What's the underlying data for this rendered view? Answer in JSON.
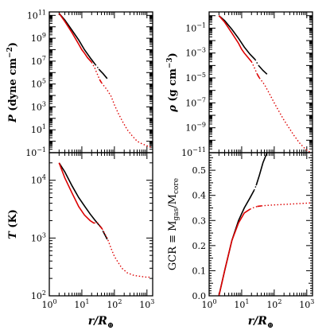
{
  "chart_data": [
    {
      "id": "pressure",
      "type": "line",
      "xscale": "log",
      "yscale": "log",
      "xlim": [
        1,
        1500
      ],
      "ylim": [
        0.1,
        200000000000
      ],
      "ylabel_symbol": "P",
      "ylabel_unit": " (dyne cm",
      "ylabel_unit_exp": "−2",
      "ylabel_close": ")",
      "yticks": [
        0.1,
        10,
        1000,
        100000,
        10000000,
        1000000000,
        100000000000
      ],
      "ytick_labels": [
        {
          "base": "10",
          "exp": "−1"
        },
        {
          "base": "10",
          "exp": "1"
        },
        {
          "base": "10",
          "exp": "3"
        },
        {
          "base": "10",
          "exp": "5"
        },
        {
          "base": "10",
          "exp": "7"
        },
        {
          "base": "10",
          "exp": "9"
        },
        {
          "base": "10",
          "exp": "11"
        }
      ],
      "series": [
        {
          "color": "#000000",
          "dash": "solid",
          "x": [
            2,
            3,
            5,
            8,
            12,
            18,
            26
          ],
          "y": [
            150000000000,
            40000000000,
            5000000000,
            700000000,
            100000000,
            20000000,
            5000000
          ]
        },
        {
          "color": "#000000",
          "dash": "dotted",
          "x": [
            26,
            30,
            33
          ],
          "y": [
            5000000,
            3000000,
            2000000
          ]
        },
        {
          "color": "#000000",
          "dash": "solid",
          "x": [
            33,
            45,
            60
          ],
          "y": [
            2000000,
            800000,
            300000
          ]
        },
        {
          "color": "#dd0000",
          "dash": "solid",
          "x": [
            2,
            3,
            5,
            8,
            10,
            12,
            15,
            20
          ],
          "y": [
            150000000000,
            30000000000,
            3000000000,
            300000000,
            100000000,
            50000000,
            20000000,
            8000000
          ]
        },
        {
          "color": "#dd0000",
          "dash": "dotted",
          "x": [
            20,
            25,
            30,
            35
          ],
          "y": [
            8000000,
            2500000,
            700000,
            250000
          ]
        },
        {
          "color": "#dd0000",
          "dash": "solid",
          "x": [
            35,
            40
          ],
          "y": [
            250000,
            130000
          ]
        },
        {
          "color": "#dd0000",
          "dash": "dotted",
          "x": [
            40,
            60,
            80,
            100,
            130,
            180,
            250,
            350,
            500,
            700,
            1000,
            1300
          ],
          "y": [
            130000,
            30000,
            8000,
            1500,
            300,
            50,
            10,
            3,
            1,
            0.6,
            0.4,
            0.3
          ]
        }
      ]
    },
    {
      "id": "density",
      "type": "line",
      "xscale": "log",
      "yscale": "log",
      "xlim": [
        1,
        1500
      ],
      "ylim": [
        1e-11,
        2
      ],
      "ylabel_symbol": "ρ",
      "ylabel_unit": " (g cm",
      "ylabel_unit_exp": "−3",
      "ylabel_close": ")",
      "yticks": [
        1e-11,
        1e-09,
        1e-07,
        1e-05,
        0.001,
        0.1
      ],
      "ytick_labels": [
        {
          "base": "10",
          "exp": "−11"
        },
        {
          "base": "10",
          "exp": "−9"
        },
        {
          "base": "10",
          "exp": "−7"
        },
        {
          "base": "10",
          "exp": "−5"
        },
        {
          "base": "10",
          "exp": "−3"
        },
        {
          "base": "10",
          "exp": "−1"
        }
      ],
      "series": [
        {
          "color": "#000000",
          "dash": "solid",
          "x": [
            2,
            3,
            5,
            8,
            12,
            18,
            26
          ],
          "y": [
            1,
            0.4,
            0.08,
            0.015,
            0.003,
            0.0008,
            0.0003
          ]
        },
        {
          "color": "#000000",
          "dash": "dotted",
          "x": [
            26,
            30,
            33
          ],
          "y": [
            0.0003,
            0.00015,
            0.0001
          ]
        },
        {
          "color": "#000000",
          "dash": "solid",
          "x": [
            33,
            45,
            60
          ],
          "y": [
            0.0001,
            4e-05,
            2e-05
          ]
        },
        {
          "color": "#dd0000",
          "dash": "solid",
          "x": [
            2,
            3,
            5,
            8,
            10,
            12,
            15,
            20
          ],
          "y": [
            1,
            0.3,
            0.04,
            0.006,
            0.002,
            0.001,
            0.0005,
            0.0002
          ]
        },
        {
          "color": "#dd0000",
          "dash": "dotted",
          "x": [
            20,
            25,
            30
          ],
          "y": [
            0.0002,
            6e-05,
            2e-05
          ]
        },
        {
          "color": "#dd0000",
          "dash": "solid",
          "x": [
            30,
            35
          ],
          "y": [
            2e-05,
            1e-05
          ]
        },
        {
          "color": "#dd0000",
          "dash": "dotted",
          "x": [
            35,
            50,
            70,
            100,
            150,
            200,
            300,
            400,
            600,
            900,
            1300
          ],
          "y": [
            1e-05,
            3e-06,
            6e-07,
            1e-07,
            1.5e-08,
            4e-09,
            8e-10,
            2.5e-10,
            6e-11,
            2e-11,
            1e-11
          ]
        }
      ]
    },
    {
      "id": "temperature",
      "type": "line",
      "xscale": "log",
      "yscale": "log",
      "xlim": [
        1,
        1500
      ],
      "ylim": [
        100,
        30000
      ],
      "ylabel_symbol": "T",
      "ylabel_unit": " (K)",
      "yticks": [
        100,
        1000,
        10000
      ],
      "ytick_labels": [
        {
          "base": "10",
          "exp": "2"
        },
        {
          "base": "10",
          "exp": "3"
        },
        {
          "base": "10",
          "exp": "4"
        }
      ],
      "series": [
        {
          "color": "#000000",
          "dash": "solid",
          "x": [
            2,
            3,
            5,
            8,
            12,
            18,
            26,
            33,
            40
          ],
          "y": [
            20000,
            14000,
            8000,
            5000,
            3600,
            2600,
            2000,
            1700,
            1500
          ]
        },
        {
          "color": "#000000",
          "dash": "dotted",
          "x": [
            40,
            45
          ],
          "y": [
            1500,
            1300
          ]
        },
        {
          "color": "#000000",
          "dash": "solid",
          "x": [
            45,
            55,
            60
          ],
          "y": [
            1300,
            1050,
            950
          ]
        },
        {
          "color": "#dd0000",
          "dash": "solid",
          "x": [
            2,
            3,
            5,
            8,
            12,
            18,
            24
          ],
          "y": [
            20000,
            11000,
            6000,
            3500,
            2500,
            2000,
            1800
          ]
        },
        {
          "color": "#dd0000",
          "dash": "dotted",
          "x": [
            24,
            28,
            32,
            36
          ],
          "y": [
            1800,
            1900,
            1800,
            1600
          ]
        },
        {
          "color": "#dd0000",
          "dash": "solid",
          "x": [
            36,
            42
          ],
          "y": [
            1600,
            1450
          ]
        },
        {
          "color": "#dd0000",
          "dash": "dotted",
          "x": [
            42,
            60,
            80,
            100,
            130,
            170,
            250,
            400,
            700,
            1000,
            1300
          ],
          "y": [
            1450,
            1000,
            650,
            480,
            380,
            300,
            250,
            225,
            215,
            210,
            210
          ]
        }
      ]
    },
    {
      "id": "gcr",
      "type": "line",
      "xscale": "log",
      "yscale": "linear",
      "xlim": [
        1,
        1500
      ],
      "ylim": [
        0,
        0.57
      ],
      "ylabel_text": "GCR ≡ M",
      "ylabel_sub1": "gas",
      "ylabel_mid": "/M",
      "ylabel_sub2": "core",
      "yticks": [
        0,
        0.1,
        0.2,
        0.3,
        0.4,
        0.5
      ],
      "ytick_labels_text": [
        "0.0",
        "0.1",
        "0.2",
        "0.3",
        "0.4",
        "0.5"
      ],
      "series": [
        {
          "color": "#000000",
          "dash": "solid",
          "x": [
            2,
            3,
            5,
            8,
            12,
            18,
            24
          ],
          "y": [
            0,
            0.1,
            0.22,
            0.3,
            0.35,
            0.39,
            0.42
          ]
        },
        {
          "color": "#000000",
          "dash": "dotted",
          "x": [
            24,
            28
          ],
          "y": [
            0.42,
            0.44
          ]
        },
        {
          "color": "#000000",
          "dash": "solid",
          "x": [
            28,
            35,
            45,
            60
          ],
          "y": [
            0.44,
            0.48,
            0.53,
            0.57
          ]
        },
        {
          "color": "#dd0000",
          "dash": "solid",
          "x": [
            2,
            3,
            5,
            8,
            12,
            18
          ],
          "y": [
            0,
            0.1,
            0.22,
            0.29,
            0.33,
            0.345
          ]
        },
        {
          "color": "#dd0000",
          "dash": "dotted",
          "x": [
            18,
            24,
            30
          ],
          "y": [
            0.345,
            0.352,
            0.356
          ]
        },
        {
          "color": "#dd0000",
          "dash": "solid",
          "x": [
            30,
            40
          ],
          "y": [
            0.356,
            0.358
          ]
        },
        {
          "color": "#dd0000",
          "dash": "dotted",
          "x": [
            40,
            60,
            100,
            200,
            400,
            700,
            1300
          ],
          "y": [
            0.358,
            0.36,
            0.362,
            0.364,
            0.366,
            0.368,
            0.37
          ]
        }
      ]
    }
  ],
  "xticks": [
    1,
    10,
    100,
    1000
  ],
  "xtick_labels": [
    {
      "base": "10",
      "exp": "0"
    },
    {
      "base": "10",
      "exp": "1"
    },
    {
      "base": "10",
      "exp": "2"
    },
    {
      "base": "10",
      "exp": "3"
    }
  ],
  "xlabel_symbol": "r",
  "xlabel_mid": "/R",
  "xlabel_sub": "⊕"
}
